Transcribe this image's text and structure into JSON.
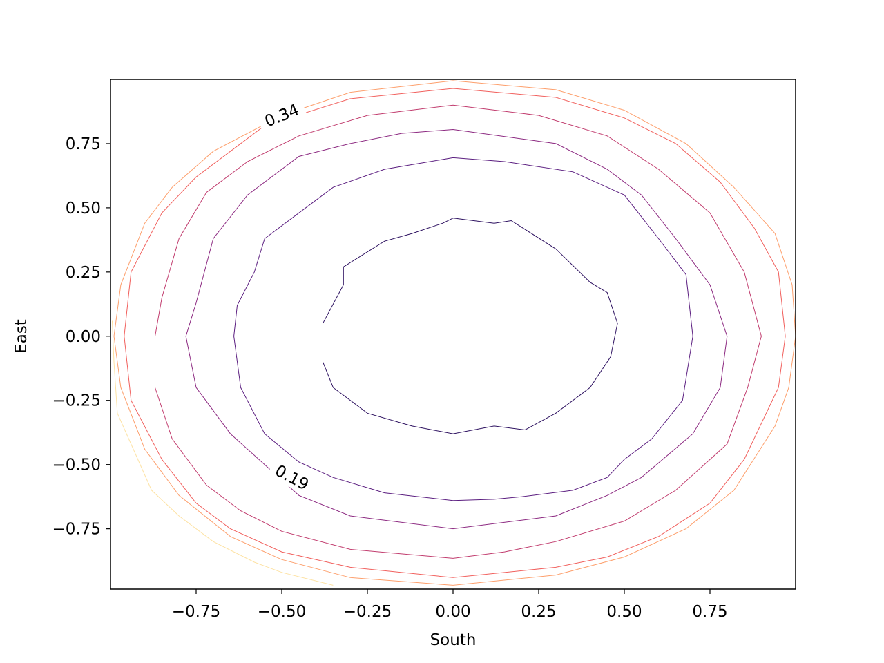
{
  "chart_data": {
    "type": "contour",
    "xlabel": "South",
    "ylabel": "East",
    "xlim": [
      -1.0,
      1.0
    ],
    "ylim": [
      -0.985,
      1.0
    ],
    "xticks": [
      -0.75,
      -0.5,
      -0.25,
      0.0,
      0.25,
      0.5,
      0.75
    ],
    "xtick_labels": [
      "−0.75",
      "−0.50",
      "−0.25",
      "0.00",
      "0.25",
      "0.50",
      "0.75"
    ],
    "yticks": [
      -0.75,
      -0.5,
      -0.25,
      0.0,
      0.25,
      0.5,
      0.75
    ],
    "ytick_labels": [
      "−0.75",
      "−0.50",
      "−0.25",
      "0.00",
      "0.25",
      "0.50",
      "0.75"
    ],
    "colormap": "magma",
    "grid": false,
    "contour_labels": [
      {
        "text": "0.34",
        "x": -0.5,
        "y": 0.86,
        "angle": -22
      },
      {
        "text": "0.19",
        "x": -0.47,
        "y": -0.55,
        "angle": 28
      }
    ],
    "levels": [
      {
        "color": "#2d1160",
        "path": [
          [
            0.0,
            0.46
          ],
          [
            0.12,
            0.44
          ],
          [
            0.17,
            0.45
          ],
          [
            0.3,
            0.34
          ],
          [
            0.4,
            0.21
          ],
          [
            0.45,
            0.17
          ],
          [
            0.48,
            0.05
          ],
          [
            0.46,
            -0.08
          ],
          [
            0.4,
            -0.2
          ],
          [
            0.3,
            -0.3
          ],
          [
            0.21,
            -0.365
          ],
          [
            0.12,
            -0.35
          ],
          [
            0.0,
            -0.38
          ],
          [
            -0.12,
            -0.35
          ],
          [
            -0.25,
            -0.3
          ],
          [
            -0.35,
            -0.2
          ],
          [
            -0.38,
            -0.1
          ],
          [
            -0.38,
            0.05
          ],
          [
            -0.32,
            0.2
          ],
          [
            -0.32,
            0.27
          ],
          [
            -0.2,
            0.37
          ],
          [
            -0.12,
            0.4
          ],
          [
            -0.03,
            0.44
          ],
          [
            0.0,
            0.46
          ]
        ]
      },
      {
        "color": "#5b1e80",
        "path": [
          [
            0.0,
            0.695
          ],
          [
            0.15,
            0.68
          ],
          [
            0.35,
            0.64
          ],
          [
            0.5,
            0.55
          ],
          [
            0.6,
            0.38
          ],
          [
            0.68,
            0.24
          ],
          [
            0.7,
            0.0
          ],
          [
            0.67,
            -0.25
          ],
          [
            0.58,
            -0.4
          ],
          [
            0.5,
            -0.48
          ],
          [
            0.45,
            -0.55
          ],
          [
            0.35,
            -0.6
          ],
          [
            0.2,
            -0.625
          ],
          [
            0.12,
            -0.635
          ],
          [
            0.0,
            -0.64
          ],
          [
            -0.2,
            -0.61
          ],
          [
            -0.35,
            -0.55
          ],
          [
            -0.45,
            -0.49
          ],
          [
            -0.55,
            -0.38
          ],
          [
            -0.62,
            -0.2
          ],
          [
            -0.64,
            0.0
          ],
          [
            -0.63,
            0.12
          ],
          [
            -0.58,
            0.25
          ],
          [
            -0.55,
            0.38
          ],
          [
            -0.45,
            0.48
          ],
          [
            -0.35,
            0.58
          ],
          [
            -0.2,
            0.65
          ],
          [
            0.0,
            0.695
          ]
        ]
      },
      {
        "color": "#8c2981",
        "path": [
          [
            0.0,
            0.805
          ],
          [
            0.3,
            0.75
          ],
          [
            0.45,
            0.65
          ],
          [
            0.55,
            0.55
          ],
          [
            0.65,
            0.38
          ],
          [
            0.75,
            0.2
          ],
          [
            0.8,
            0.0
          ],
          [
            0.78,
            -0.2
          ],
          [
            0.7,
            -0.38
          ],
          [
            0.55,
            -0.55
          ],
          [
            0.45,
            -0.62
          ],
          [
            0.3,
            -0.7
          ],
          [
            0.0,
            -0.75
          ],
          [
            -0.3,
            -0.7
          ],
          [
            -0.45,
            -0.62
          ],
          [
            -0.55,
            -0.5
          ],
          [
            -0.65,
            -0.38
          ],
          [
            -0.75,
            -0.2
          ],
          [
            -0.78,
            0.0
          ],
          [
            -0.75,
            0.13
          ],
          [
            -0.7,
            0.38
          ],
          [
            -0.6,
            0.55
          ],
          [
            -0.45,
            0.7
          ],
          [
            -0.3,
            0.75
          ],
          [
            -0.15,
            0.79
          ],
          [
            0.0,
            0.805
          ]
        ]
      },
      {
        "color": "#c13c6e",
        "path": [
          [
            0.0,
            0.9
          ],
          [
            0.25,
            0.86
          ],
          [
            0.45,
            0.78
          ],
          [
            0.6,
            0.65
          ],
          [
            0.75,
            0.48
          ],
          [
            0.85,
            0.25
          ],
          [
            0.9,
            0.0
          ],
          [
            0.86,
            -0.2
          ],
          [
            0.8,
            -0.42
          ],
          [
            0.65,
            -0.6
          ],
          [
            0.5,
            -0.72
          ],
          [
            0.3,
            -0.8
          ],
          [
            0.15,
            -0.84
          ],
          [
            0.0,
            -0.865
          ],
          [
            -0.3,
            -0.83
          ],
          [
            -0.5,
            -0.76
          ],
          [
            -0.62,
            -0.68
          ],
          [
            -0.72,
            -0.58
          ],
          [
            -0.82,
            -0.4
          ],
          [
            -0.87,
            -0.2
          ],
          [
            -0.87,
            0.0
          ],
          [
            -0.85,
            0.15
          ],
          [
            -0.8,
            0.38
          ],
          [
            -0.72,
            0.56
          ],
          [
            -0.6,
            0.68
          ],
          [
            -0.45,
            0.78
          ],
          [
            -0.25,
            0.86
          ],
          [
            0.0,
            0.9
          ]
        ]
      },
      {
        "color": "#f1605d",
        "path": [
          [
            0.0,
            0.965
          ],
          [
            0.3,
            0.93
          ],
          [
            0.5,
            0.85
          ],
          [
            0.65,
            0.75
          ],
          [
            0.78,
            0.6
          ],
          [
            0.88,
            0.42
          ],
          [
            0.95,
            0.25
          ],
          [
            0.97,
            0.0
          ],
          [
            0.95,
            -0.2
          ],
          [
            0.85,
            -0.48
          ],
          [
            0.75,
            -0.65
          ],
          [
            0.6,
            -0.78
          ],
          [
            0.45,
            -0.86
          ],
          [
            0.3,
            -0.9
          ],
          [
            0.0,
            -0.94
          ],
          [
            -0.3,
            -0.9
          ],
          [
            -0.5,
            -0.84
          ],
          [
            -0.65,
            -0.75
          ],
          [
            -0.75,
            -0.65
          ],
          [
            -0.85,
            -0.48
          ],
          [
            -0.94,
            -0.25
          ],
          [
            -0.96,
            0.0
          ],
          [
            -0.94,
            0.25
          ],
          [
            -0.85,
            0.48
          ],
          [
            -0.75,
            0.62
          ],
          [
            -0.63,
            0.74
          ],
          [
            -0.55,
            0.82
          ],
          [
            -0.3,
            0.925
          ],
          [
            0.0,
            0.965
          ]
        ]
      },
      {
        "color": "#fd9f6c",
        "path": [
          [
            0.0,
            0.995
          ],
          [
            0.3,
            0.96
          ],
          [
            0.5,
            0.88
          ],
          [
            0.68,
            0.75
          ],
          [
            0.82,
            0.58
          ],
          [
            0.94,
            0.4
          ],
          [
            0.99,
            0.2
          ],
          [
            1.0,
            0.0
          ],
          [
            0.98,
            -0.2
          ],
          [
            0.94,
            -0.35
          ],
          [
            0.82,
            -0.6
          ],
          [
            0.68,
            -0.75
          ],
          [
            0.5,
            -0.86
          ],
          [
            0.3,
            -0.93
          ],
          [
            0.0,
            -0.97
          ],
          [
            -0.3,
            -0.94
          ],
          [
            -0.5,
            -0.87
          ],
          [
            -0.65,
            -0.78
          ],
          [
            -0.8,
            -0.62
          ],
          [
            -0.9,
            -0.44
          ],
          [
            -0.97,
            -0.2
          ],
          [
            -0.99,
            0.0
          ],
          [
            -0.97,
            0.2
          ],
          [
            -0.9,
            0.44
          ],
          [
            -0.82,
            0.58
          ],
          [
            -0.7,
            0.72
          ],
          [
            -0.5,
            0.86
          ],
          [
            -0.3,
            0.95
          ],
          [
            0.0,
            0.995
          ]
        ]
      },
      {
        "color": "#fde2a3",
        "path": [
          [
            -0.995,
            0.06
          ],
          [
            -0.99,
            -0.1
          ],
          [
            -0.98,
            -0.3
          ],
          [
            -0.93,
            -0.45
          ],
          [
            -0.88,
            -0.6
          ],
          [
            -0.8,
            -0.7
          ],
          [
            -0.7,
            -0.8
          ],
          [
            -0.58,
            -0.88
          ],
          [
            -0.5,
            -0.92
          ],
          [
            -0.35,
            -0.97
          ]
        ]
      }
    ]
  }
}
